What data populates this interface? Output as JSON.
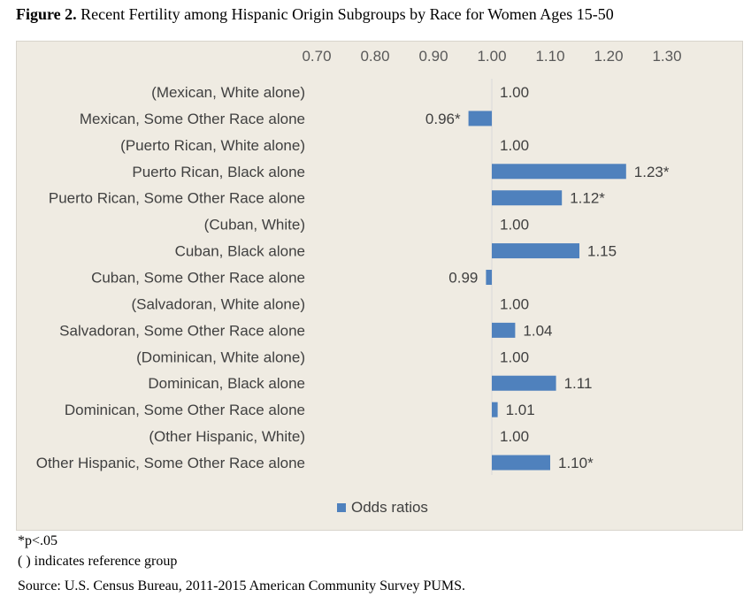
{
  "figure": {
    "label": "Figure 2.",
    "title": "Recent Fertility among Hispanic Origin Subgroups by Race for Women Ages 15-50"
  },
  "notes": {
    "significance": "*p<.05",
    "reference": "( ) indicates reference group",
    "source": "Source: U.S. Census Bureau, 2011-2015 American Community Survey PUMS."
  },
  "chart_data": {
    "type": "bar",
    "orientation": "horizontal",
    "title": "",
    "xlabel": "",
    "ylabel": "",
    "xlim": [
      0.7,
      1.3
    ],
    "baseline": 1.0,
    "ticks": [
      "0.70",
      "0.80",
      "0.90",
      "1.00",
      "1.10",
      "1.20",
      "1.30"
    ],
    "tick_values": [
      0.7,
      0.8,
      0.9,
      1.0,
      1.1,
      1.2,
      1.3
    ],
    "axis_position": "top",
    "grid": false,
    "legend_position": "bottom",
    "bar_color": "#4f81bd",
    "categories": [
      "(Mexican, White alone)",
      "Mexican, Some Other Race alone",
      "(Puerto Rican, White alone)",
      "Puerto Rican, Black alone",
      "Puerto Rican, Some Other Race alone",
      "(Cuban, White)",
      "Cuban, Black alone",
      "Cuban, Some Other Race alone",
      "(Salvadoran, White alone)",
      "Salvadoran, Some Other Race alone",
      "(Dominican, White alone)",
      "Dominican, Black alone",
      "Dominican, Some Other Race alone",
      "(Other Hispanic, White)",
      "Other Hispanic, Some Other Race alone"
    ],
    "series": [
      {
        "name": "Odds ratios",
        "values": [
          1.0,
          0.96,
          1.0,
          1.23,
          1.12,
          1.0,
          1.15,
          0.99,
          1.0,
          1.04,
          1.0,
          1.11,
          1.01,
          1.0,
          1.1
        ],
        "labels": [
          "1.00",
          "0.96*",
          "1.00",
          "1.23*",
          "1.12*",
          "1.00",
          "1.15",
          "0.99",
          "1.00",
          "1.04",
          "1.00",
          "1.11",
          "1.01",
          "1.00",
          "1.10*"
        ]
      }
    ]
  }
}
